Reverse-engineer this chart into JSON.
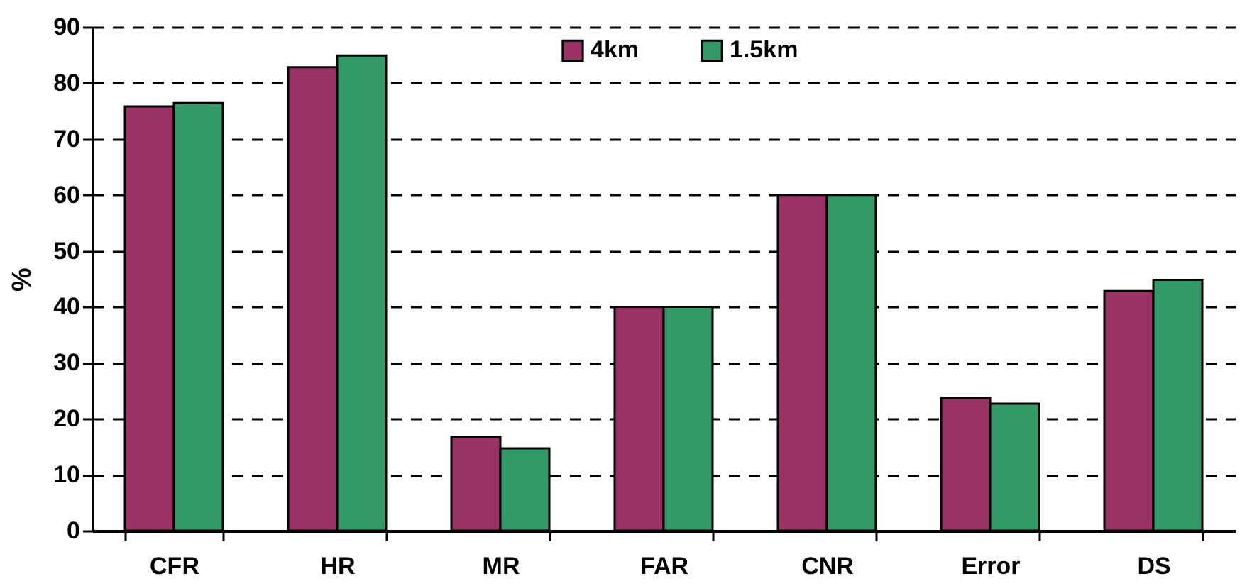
{
  "chart_data": {
    "type": "bar",
    "ylabel": "%",
    "categories": [
      "CFR",
      "HR",
      "MR",
      "FAR",
      "CNR",
      "Error",
      "DS"
    ],
    "series": [
      {
        "name": "4km",
        "color": "#993366",
        "values": [
          75.8,
          82.8,
          16.8,
          40,
          60,
          23.7,
          42.8
        ]
      },
      {
        "name": "1.5km",
        "color": "#339966",
        "values": [
          76.4,
          84.9,
          14.7,
          40,
          60,
          22.7,
          44.8
        ]
      }
    ],
    "ylim": [
      0,
      90
    ],
    "yticks": [
      0,
      10,
      20,
      30,
      40,
      50,
      60,
      70,
      80,
      90
    ],
    "grid": "y",
    "legend": "top"
  }
}
